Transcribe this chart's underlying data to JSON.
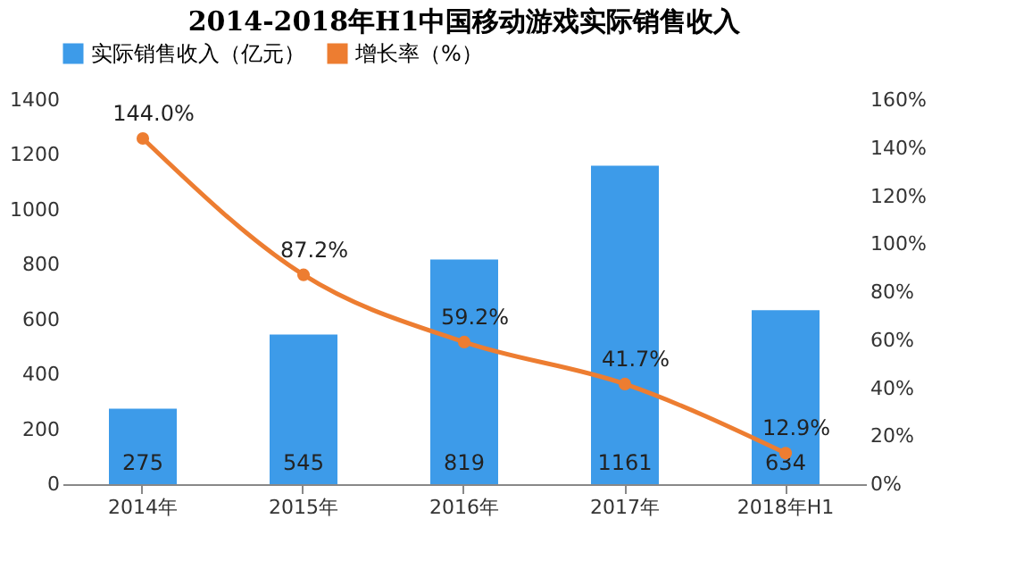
{
  "chart_data": {
    "type": "bar",
    "title": "2014-2018年H1中国移动游戏实际销售收入",
    "categories": [
      "2014年",
      "2015年",
      "2016年",
      "2017年",
      "2018年H1"
    ],
    "series": [
      {
        "name": "实际销售收入（亿元）",
        "color": "#3d9be9",
        "values": [
          275,
          545,
          819,
          1161,
          634
        ],
        "data_labels": true
      },
      {
        "name": "增长率（%）",
        "type": "line",
        "axis": "y2",
        "color": "#ed7d31",
        "values": [
          144.0,
          87.2,
          59.2,
          41.7,
          12.9
        ],
        "value_labels": [
          "144.0%",
          "87.2%",
          "59.2%",
          "41.7%",
          "12.9%"
        ],
        "marker": "circle",
        "line_style": "solid"
      }
    ],
    "ylim": [
      0,
      1400
    ],
    "yticks": [
      0,
      200,
      400,
      600,
      800,
      1000,
      1200,
      1400
    ],
    "y2lim": [
      0,
      160
    ],
    "y2ticks": [
      {
        "value": 0,
        "label": "0%"
      },
      {
        "value": 20,
        "label": "20%"
      },
      {
        "value": 40,
        "label": "40%"
      },
      {
        "value": 60,
        "label": "60%"
      },
      {
        "value": 80,
        "label": "80%"
      },
      {
        "value": 100,
        "label": "100%"
      },
      {
        "value": 120,
        "label": "120%"
      },
      {
        "value": 140,
        "label": "140%"
      },
      {
        "value": 160,
        "label": "160%"
      }
    ],
    "legend": "top",
    "grid": false
  }
}
